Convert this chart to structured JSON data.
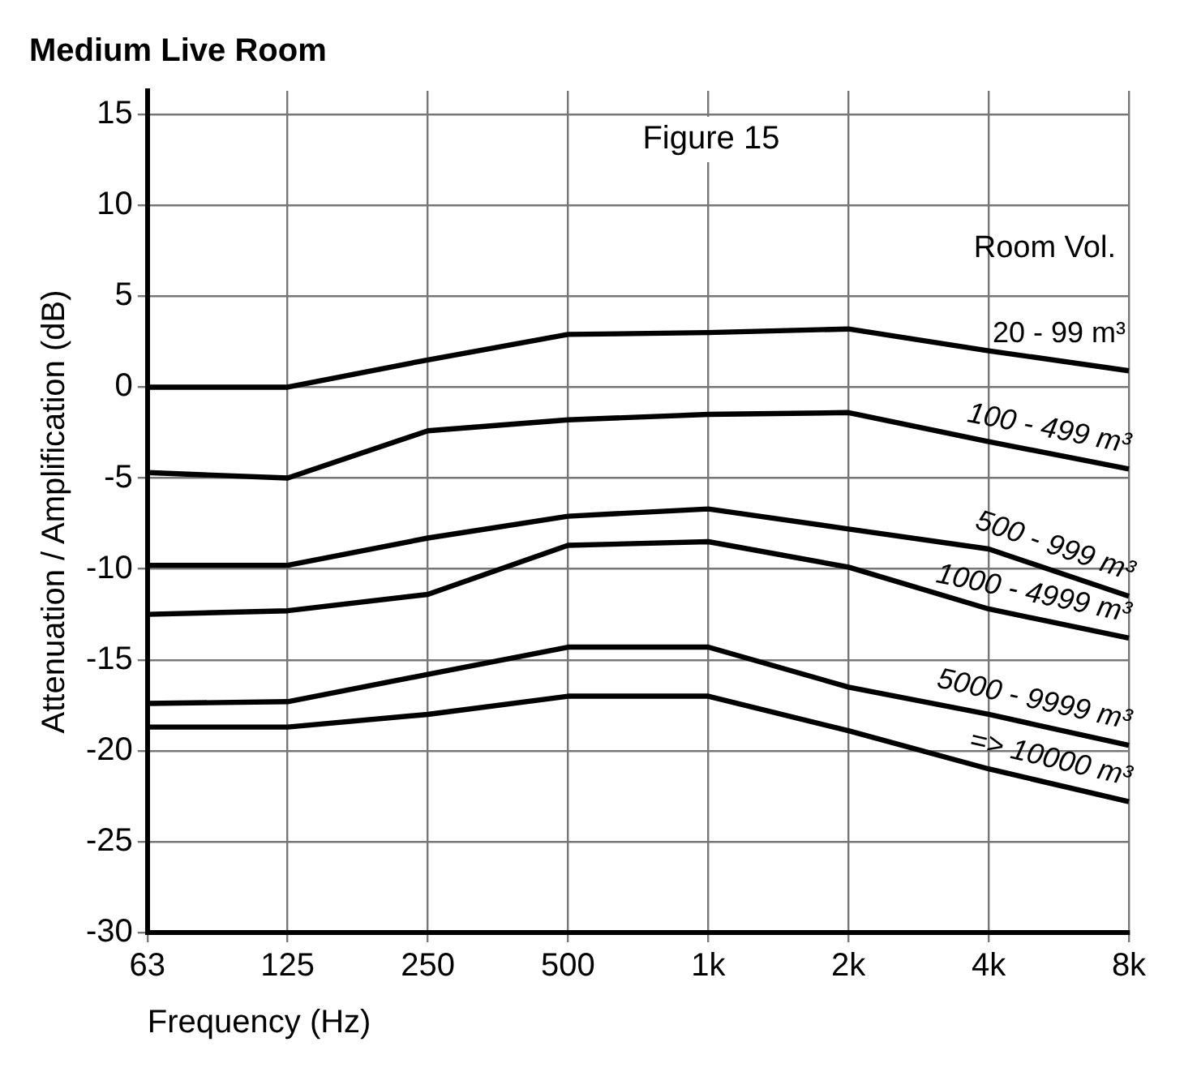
{
  "chart_data": {
    "type": "line",
    "title": "Medium Live Room",
    "xlabel": "Frequency (Hz)",
    "ylabel": "Attenuation / Amplification (dB)",
    "legend_title": "Room Vol.",
    "annotations": [
      "Figure 15"
    ],
    "categories": [
      "63",
      "125",
      "250",
      "500",
      "1k",
      "2k",
      "4k",
      "8k"
    ],
    "ylim": [
      -30,
      16.3
    ],
    "yticks": [
      -30,
      -25,
      -20,
      -15,
      -10,
      -5,
      0,
      5,
      10,
      15
    ],
    "grid": true,
    "marker": "none",
    "line_style": "solid",
    "series": [
      {
        "name": "20 - 99 m³",
        "color": "#000000",
        "values": [
          0,
          0,
          1.5,
          2.9,
          3.0,
          3.2,
          2.0,
          0.9
        ]
      },
      {
        "name": "100 - 499 m³",
        "color": "#000000",
        "values": [
          -4.7,
          -5.0,
          -2.4,
          -1.8,
          -1.5,
          -1.4,
          -3.0,
          -4.5
        ]
      },
      {
        "name": "500 - 999 m³",
        "color": "#000000",
        "values": [
          -9.8,
          -9.8,
          -8.3,
          -7.1,
          -6.7,
          -7.8,
          -8.9,
          -11.5
        ]
      },
      {
        "name": "1000 - 4999 m³",
        "color": "#000000",
        "values": [
          -12.5,
          -12.3,
          -11.4,
          -8.7,
          -8.5,
          -9.9,
          -12.2,
          -13.8
        ]
      },
      {
        "name": "5000 - 9999 m³",
        "color": "#000000",
        "values": [
          -17.4,
          -17.3,
          -15.8,
          -14.3,
          -14.3,
          -16.5,
          -18.0,
          -19.7
        ]
      },
      {
        "name": "=> 10000 m³",
        "color": "#000000",
        "values": [
          -18.7,
          -18.7,
          -18.0,
          -17.0,
          -17.0,
          -18.9,
          -21.0,
          -22.8
        ]
      }
    ]
  }
}
